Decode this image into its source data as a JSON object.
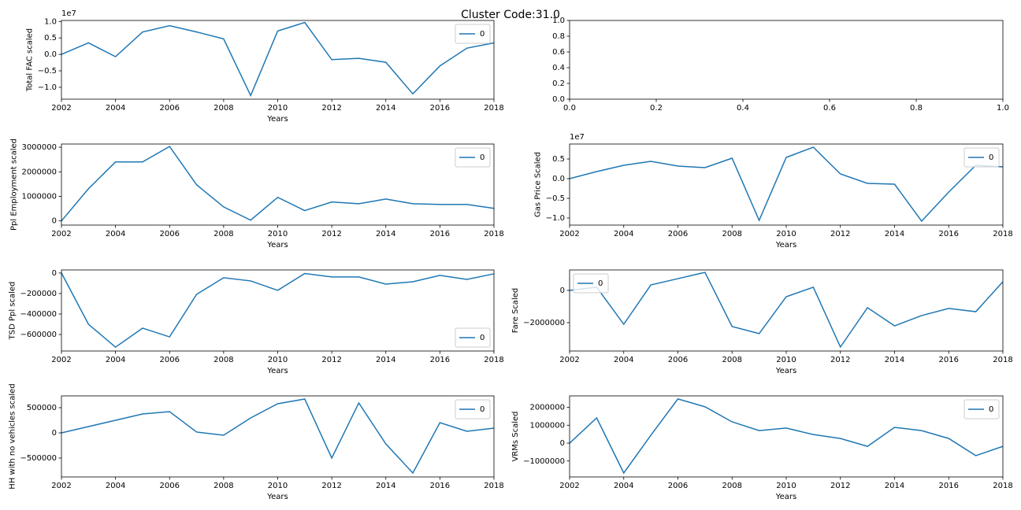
{
  "title": "Cluster Code:31.0",
  "chart_data": [
    {
      "type": "line",
      "xlabel": "Years",
      "ylabel": "Total FAC scaled",
      "offset_label": "1e7",
      "x": [
        2002,
        2003,
        2004,
        2005,
        2006,
        2007,
        2008,
        2009,
        2010,
        2011,
        2012,
        2013,
        2014,
        2015,
        2016,
        2017,
        2018
      ],
      "series": [
        {
          "name": "0",
          "color": "#1f77b4",
          "values": [
            0,
            3500000,
            -700000,
            6800000,
            8700000,
            6800000,
            4700000,
            -12500000,
            7100000,
            9700000,
            -1600000,
            -1200000,
            -2400000,
            -12000000,
            -3500000,
            1900000,
            3500000
          ]
        }
      ],
      "xlim": [
        2002,
        2018
      ],
      "xticks": [
        2002,
        2004,
        2006,
        2008,
        2010,
        2012,
        2014,
        2016,
        2018
      ],
      "ylim": [
        -13600000,
        10300000
      ],
      "yticks": [
        {
          "value": -10000000,
          "label": "−1.0"
        },
        {
          "value": -5000000,
          "label": "−0.5"
        },
        {
          "value": 0,
          "label": "0.0"
        },
        {
          "value": 5000000,
          "label": "0.5"
        },
        {
          "value": 10000000,
          "label": "1.0"
        }
      ],
      "legend": "upper right"
    },
    {
      "type": "line",
      "series": [],
      "xlim": [
        0,
        1
      ],
      "xticks": [
        {
          "value": 0,
          "label": "0.0"
        },
        0.2,
        0.4,
        0.6,
        0.8,
        {
          "value": 1,
          "label": "1.0"
        }
      ],
      "ylim": [
        0,
        1
      ],
      "yticks": [
        {
          "value": 0,
          "label": "0.0"
        },
        0.2,
        0.4,
        0.6,
        0.8,
        {
          "value": 1,
          "label": "1.0"
        }
      ]
    },
    {
      "type": "line",
      "xlabel": "Years",
      "ylabel": "Ppl Employment scaled",
      "x": [
        2002,
        2003,
        2004,
        2005,
        2006,
        2007,
        2008,
        2009,
        2010,
        2011,
        2012,
        2013,
        2014,
        2015,
        2016,
        2017,
        2018
      ],
      "series": [
        {
          "name": "0",
          "color": "#1f77b4",
          "values": [
            0,
            1310000,
            2400000,
            2400000,
            3030000,
            1470000,
            570000,
            30000,
            960000,
            420000,
            770000,
            700000,
            890000,
            700000,
            670000,
            670000,
            510000
          ]
        }
      ],
      "xlim": [
        2002,
        2018
      ],
      "xticks": [
        2002,
        2004,
        2006,
        2008,
        2010,
        2012,
        2014,
        2016,
        2018
      ],
      "ylim": [
        -170000,
        3130000
      ],
      "yticks": [
        0,
        1000000,
        2000000,
        3000000
      ],
      "legend": "upper right"
    },
    {
      "type": "line",
      "xlabel": "Years",
      "ylabel": "Gas Price Scaled",
      "offset_label": "1e7",
      "x": [
        2002,
        2003,
        2004,
        2005,
        2006,
        2007,
        2008,
        2009,
        2010,
        2011,
        2012,
        2013,
        2014,
        2015,
        2016,
        2017,
        2018
      ],
      "series": [
        {
          "name": "0",
          "color": "#1f77b4",
          "values": [
            0,
            1800000,
            3400000,
            4400000,
            3200000,
            2800000,
            5200000,
            -10600000,
            5400000,
            8000000,
            1200000,
            -1200000,
            -1400000,
            -10800000,
            -3400000,
            3400000,
            3000000
          ]
        }
      ],
      "xlim": [
        2002,
        2018
      ],
      "xticks": [
        2002,
        2004,
        2006,
        2008,
        2010,
        2012,
        2014,
        2016,
        2018
      ],
      "ylim": [
        -11800000,
        8800000
      ],
      "yticks": [
        {
          "value": -10000000,
          "label": "−1.0"
        },
        {
          "value": -5000000,
          "label": "−0.5"
        },
        {
          "value": 0,
          "label": "0.0"
        },
        {
          "value": 5000000,
          "label": "0.5"
        }
      ],
      "legend": "upper right"
    },
    {
      "type": "line",
      "xlabel": "Years",
      "ylabel": "TSD Ppl scaled",
      "x": [
        2002,
        2003,
        2004,
        2005,
        2006,
        2007,
        2008,
        2009,
        2010,
        2011,
        2012,
        2013,
        2014,
        2015,
        2016,
        2017,
        2018
      ],
      "series": [
        {
          "name": "0",
          "color": "#1f77b4",
          "values": [
            0,
            -500000,
            -723000,
            -538000,
            -623000,
            -208000,
            -46000,
            -77000,
            -169000,
            -5000,
            -38000,
            -38000,
            -108000,
            -85000,
            -23000,
            -62000,
            -8000
          ]
        }
      ],
      "xlim": [
        2002,
        2018
      ],
      "xticks": [
        2002,
        2004,
        2006,
        2008,
        2010,
        2012,
        2014,
        2016,
        2018
      ],
      "ylim": [
        -761000,
        30000
      ],
      "yticks": [
        {
          "value": -600000,
          "label": "−600000"
        },
        {
          "value": -400000,
          "label": "−400000"
        },
        {
          "value": -200000,
          "label": "−200000"
        },
        0
      ],
      "legend": "lower right"
    },
    {
      "type": "line",
      "xlabel": "Years",
      "ylabel": "Fare Scaled",
      "x": [
        2002,
        2003,
        2004,
        2005,
        2006,
        2007,
        2008,
        2009,
        2010,
        2011,
        2012,
        2013,
        2014,
        2015,
        2016,
        2017,
        2018
      ],
      "series": [
        {
          "name": "0",
          "color": "#1f77b4",
          "values": [
            0,
            200000,
            -2100000,
            340000,
            730000,
            1120000,
            -2240000,
            -2680000,
            -390000,
            200000,
            -3510000,
            -1070000,
            -2200000,
            -1560000,
            -1120000,
            -1320000,
            540000
          ]
        }
      ],
      "xlim": [
        2002,
        2018
      ],
      "xticks": [
        2002,
        2004,
        2006,
        2008,
        2010,
        2012,
        2014,
        2016,
        2018
      ],
      "ylim": [
        -3760000,
        1270000
      ],
      "yticks": [
        {
          "value": -2000000,
          "label": "−2000000"
        },
        0
      ],
      "legend": "upper left"
    },
    {
      "type": "line",
      "xlabel": "Years",
      "ylabel": "HH with no vehicles scaled",
      "x": [
        2002,
        2003,
        2004,
        2005,
        2006,
        2007,
        2008,
        2009,
        2010,
        2011,
        2012,
        2013,
        2014,
        2015,
        2016,
        2017,
        2018
      ],
      "series": [
        {
          "name": "0",
          "color": "#1f77b4",
          "values": [
            0,
            125000,
            250000,
            375000,
            422000,
            16000,
            -47000,
            297000,
            578000,
            672000,
            -500000,
            594000,
            -219000,
            -797000,
            203000,
            31000,
            94000
          ]
        }
      ],
      "xlim": [
        2002,
        2018
      ],
      "xticks": [
        2002,
        2004,
        2006,
        2008,
        2010,
        2012,
        2014,
        2016,
        2018
      ],
      "ylim": [
        -875000,
        734000
      ],
      "yticks": [
        {
          "value": -500000,
          "label": "−500000"
        },
        0,
        500000
      ],
      "legend": "upper right"
    },
    {
      "type": "line",
      "xlabel": "Years",
      "ylabel": "VRMs Scaled",
      "x": [
        2002,
        2003,
        2004,
        2005,
        2006,
        2007,
        2008,
        2009,
        2010,
        2011,
        2012,
        2013,
        2014,
        2015,
        2016,
        2017,
        2018
      ],
      "series": [
        {
          "name": "0",
          "color": "#1f77b4",
          "values": [
            0,
            1410000,
            -1670000,
            440000,
            2470000,
            2030000,
            1190000,
            700000,
            840000,
            480000,
            260000,
            -180000,
            880000,
            700000,
            260000,
            -700000,
            -180000
          ]
        }
      ],
      "xlim": [
        2002,
        2018
      ],
      "xticks": [
        2002,
        2004,
        2006,
        2008,
        2010,
        2012,
        2014,
        2016,
        2018
      ],
      "ylim": [
        -1890000,
        2640000
      ],
      "yticks": [
        {
          "value": -1000000,
          "label": "−1000000"
        },
        0,
        1000000,
        2000000
      ],
      "legend": "upper right"
    }
  ]
}
